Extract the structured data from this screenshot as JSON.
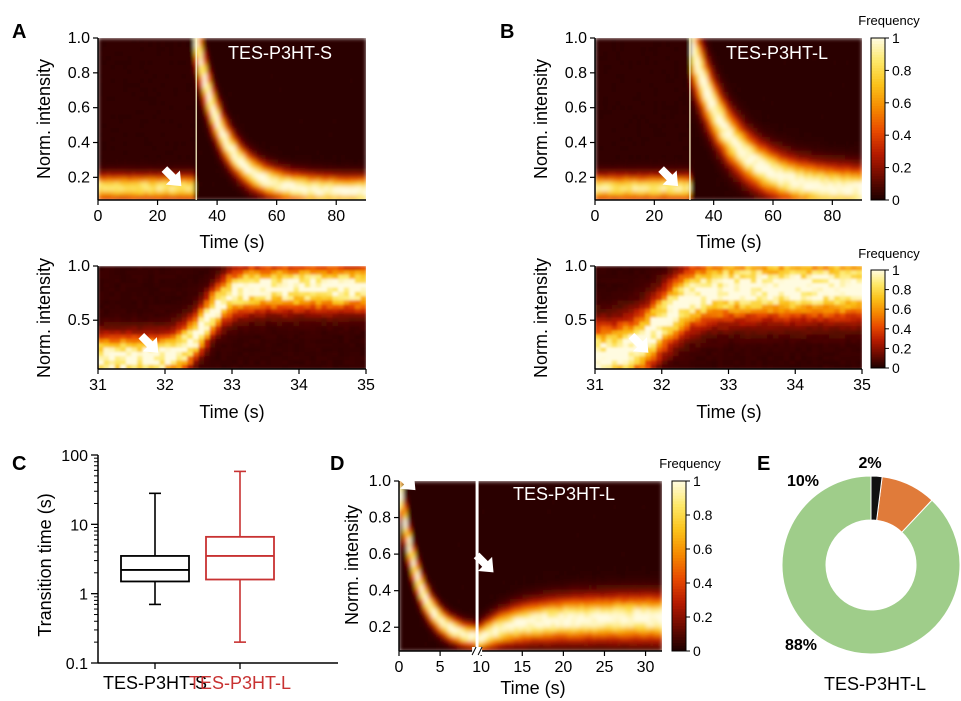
{
  "panel_letters": [
    "A",
    "B",
    "C",
    "D",
    "E"
  ],
  "colorbar": {
    "title": "Frequency",
    "ticks": [
      "0",
      "0.2",
      "0.4",
      "0.6",
      "0.8",
      "1"
    ],
    "colors": [
      "#1a0000",
      "#6b0a00",
      "#b51a00",
      "#e84a00",
      "#f58a00",
      "#fbc21a",
      "#fde868",
      "#fffbe0"
    ]
  },
  "chart_data": [
    {
      "panel": "A",
      "type": "heatmap",
      "label": "TES-P3HT-S",
      "xlabel": "Time (s)",
      "ylabel": "Norm. intensity",
      "xlim": [
        0,
        90
      ],
      "ylim": [
        0.07,
        1.0
      ],
      "xticks": [
        "0",
        "20",
        "40",
        "60",
        "80"
      ],
      "yticks": [
        "0.2",
        "0.4",
        "0.6",
        "0.8",
        "1.0"
      ],
      "transition_time": 33,
      "model": "decay",
      "arrow": {
        "x": 28,
        "y": 0.15
      }
    },
    {
      "panel": "B",
      "type": "heatmap",
      "label": "TES-P3HT-L",
      "xlabel": "Time (s)",
      "ylabel": "Norm. intensity",
      "xlim": [
        0,
        90
      ],
      "ylim": [
        0.07,
        1.0
      ],
      "xticks": [
        "0",
        "20",
        "40",
        "60",
        "80"
      ],
      "yticks": [
        "0.2",
        "0.4",
        "0.6",
        "0.8",
        "1.0"
      ],
      "transition_time": 32,
      "model": "decay_broad",
      "arrow": {
        "x": 28,
        "y": 0.15
      }
    },
    {
      "panel": "A-zoom",
      "type": "heatmap",
      "label": "",
      "xlabel": "Time (s)",
      "ylabel": "Norm. intensity",
      "xlim": [
        31,
        35
      ],
      "ylim": [
        0.05,
        1.0
      ],
      "xticks": [
        "31",
        "32",
        "33",
        "34",
        "35"
      ],
      "yticks": [
        "0.5",
        "1.0"
      ],
      "transition_time": 32.6,
      "model": "rise_sharp",
      "arrow": {
        "x": 31.9,
        "y": 0.2
      }
    },
    {
      "panel": "B-zoom",
      "type": "heatmap",
      "label": "",
      "xlabel": "Time (s)",
      "ylabel": "Norm. intensity",
      "xlim": [
        31,
        35
      ],
      "ylim": [
        0.05,
        1.0
      ],
      "xticks": [
        "31",
        "32",
        "33",
        "34",
        "35"
      ],
      "yticks": [
        "0.5",
        "1.0"
      ],
      "transition_time": 32.0,
      "model": "rise_broad",
      "arrow": {
        "x": 31.8,
        "y": 0.2
      }
    },
    {
      "panel": "C",
      "type": "box",
      "ylabel": "Transition time (s)",
      "yscale": "log",
      "ylim": [
        0.1,
        100
      ],
      "yticks": [
        "0.1",
        "1",
        "10",
        "100"
      ],
      "series": [
        {
          "name": "TES-P3HT-S",
          "color": "#000000",
          "min": 0.7,
          "q1": 1.5,
          "median": 2.2,
          "q3": 3.5,
          "max": 28
        },
        {
          "name": "TES-P3HT-L",
          "color": "#c83232",
          "min": 0.2,
          "q1": 1.6,
          "median": 3.5,
          "q3": 6.6,
          "max": 58
        }
      ]
    },
    {
      "panel": "D",
      "type": "heatmap",
      "label": "TES-P3HT-L",
      "xlabel": "Time (s)",
      "ylabel": "Norm. intensity",
      "xlim": [
        0,
        32
      ],
      "ylim": [
        0.07,
        1.0
      ],
      "xticks": [
        "0",
        "5",
        "10",
        "15",
        "20",
        "25",
        "30"
      ],
      "yticks": [
        "0.2",
        "0.4",
        "0.6",
        "0.8",
        "1.0"
      ],
      "axis_break": 9.5,
      "model": "fall_rise",
      "arrows": [
        {
          "x": 2,
          "y": 0.95
        },
        {
          "x": 11.5,
          "y": 0.5
        }
      ]
    },
    {
      "panel": "E",
      "type": "pie",
      "donut": true,
      "label": "TES-P3HT-L",
      "slices": [
        {
          "label": "88%",
          "value": 88,
          "color": "#9fcd8a"
        },
        {
          "label": "10%",
          "value": 10,
          "color": "#e07b3a"
        },
        {
          "label": "2%",
          "value": 2,
          "color": "#111111"
        }
      ]
    }
  ]
}
